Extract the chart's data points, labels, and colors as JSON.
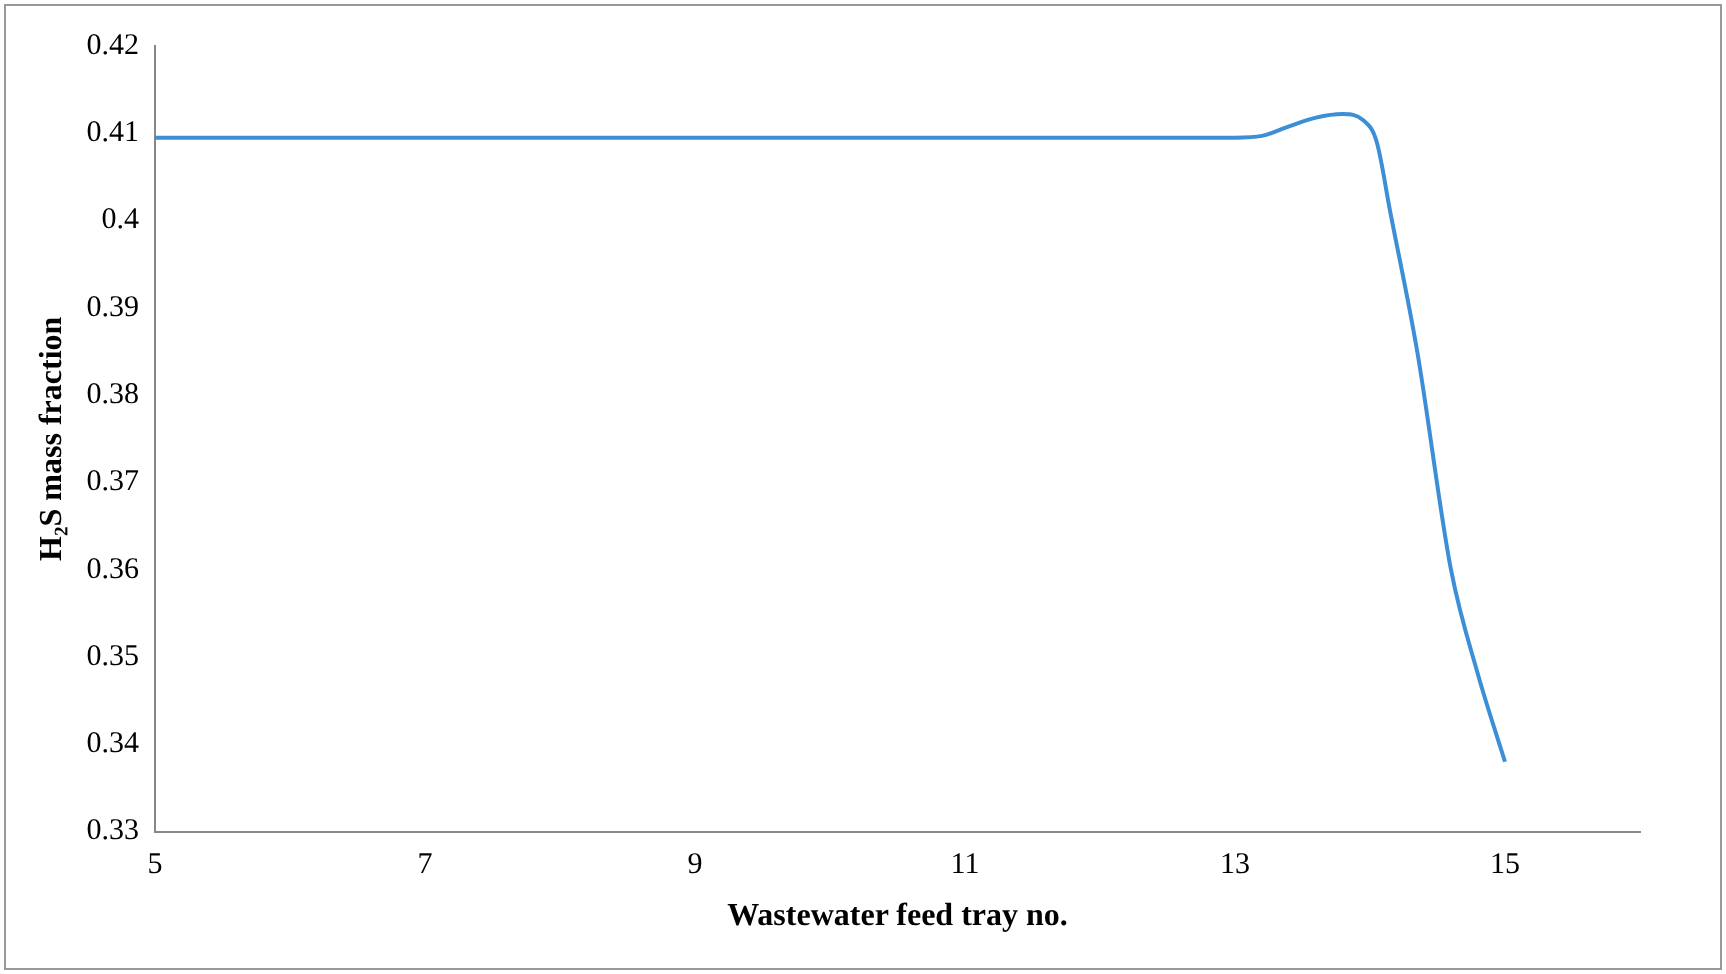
{
  "chart_data": {
    "type": "line",
    "xlabel": "Wastewater feed tray no.",
    "ylabel": "H₂S mass fraction",
    "series": [
      {
        "color": "#3c8fd6",
        "x": [
          5,
          7,
          9,
          11,
          13,
          13.2,
          13.4,
          13.6,
          13.8,
          13.95,
          14.05,
          14.15,
          14.35,
          14.6,
          14.8,
          15
        ],
        "values": [
          0.4095,
          0.4095,
          0.4095,
          0.4095,
          0.4095,
          0.4097,
          0.4108,
          0.4118,
          0.4122,
          0.4115,
          0.409,
          0.401,
          0.385,
          0.36,
          0.348,
          0.338
        ]
      }
    ],
    "xlim": [
      5,
      16
    ],
    "xticks": [
      5,
      7,
      9,
      11,
      13,
      15
    ],
    "ylim": [
      0.33,
      0.42
    ],
    "yticks": [
      0.33,
      0.34,
      0.35,
      0.36,
      0.37,
      0.38,
      0.39,
      0.4,
      0.41,
      0.42
    ],
    "grid": false,
    "legend": false,
    "marker": "none",
    "line_style": "solid"
  }
}
